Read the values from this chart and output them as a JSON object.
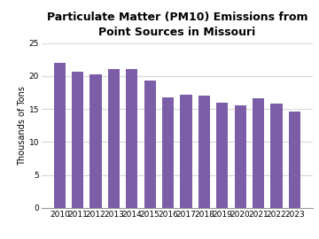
{
  "title": "Particulate Matter (PM10) Emissions from\nPoint Sources in Missouri",
  "ylabel": "Thousands of Tons",
  "categories": [
    "2010",
    "2011",
    "2012",
    "2013",
    "2014",
    "2015",
    "2016",
    "2017",
    "2018",
    "2019",
    "2020",
    "2021",
    "2022",
    "2023"
  ],
  "values": [
    22.0,
    20.6,
    20.3,
    21.0,
    21.1,
    19.3,
    16.8,
    17.2,
    17.0,
    16.0,
    15.6,
    16.6,
    15.8,
    14.6
  ],
  "bar_color": "#7B5EA7",
  "ylim": [
    0,
    25
  ],
  "yticks": [
    0,
    5,
    10,
    15,
    20,
    25
  ],
  "title_fontsize": 9,
  "ylabel_fontsize": 7,
  "tick_fontsize": 6.5,
  "background_color": "#ffffff",
  "grid_color": "#d8d8d8"
}
